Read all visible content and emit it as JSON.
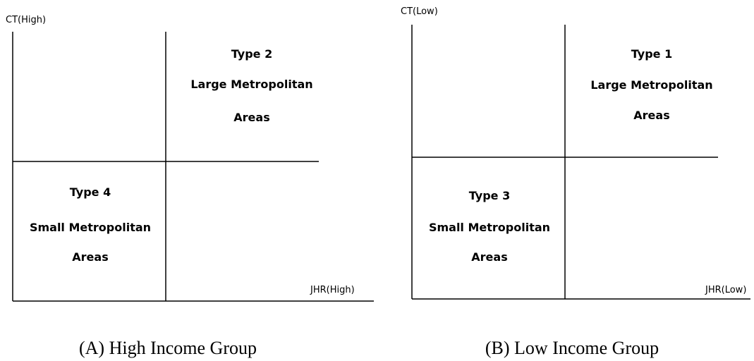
{
  "panels": [
    {
      "y_axis_label": "CT(High)",
      "x_axis_label": "JHR(High)",
      "upper_right": [
        "Type 2",
        "Large Metropolitan",
        "Areas"
      ],
      "lower_left": [
        "Type 4",
        "Small Metropolitan",
        "Areas"
      ],
      "caption": "(A) High Income Group"
    },
    {
      "y_axis_label": "CT(Low)",
      "x_axis_label": "JHR(Low)",
      "upper_right": [
        "Type 1",
        "Large Metropolitan",
        "Areas"
      ],
      "lower_left": [
        "Type 3",
        "Small Metropolitan",
        "Areas"
      ],
      "caption": "(B) Low Income Group"
    }
  ]
}
